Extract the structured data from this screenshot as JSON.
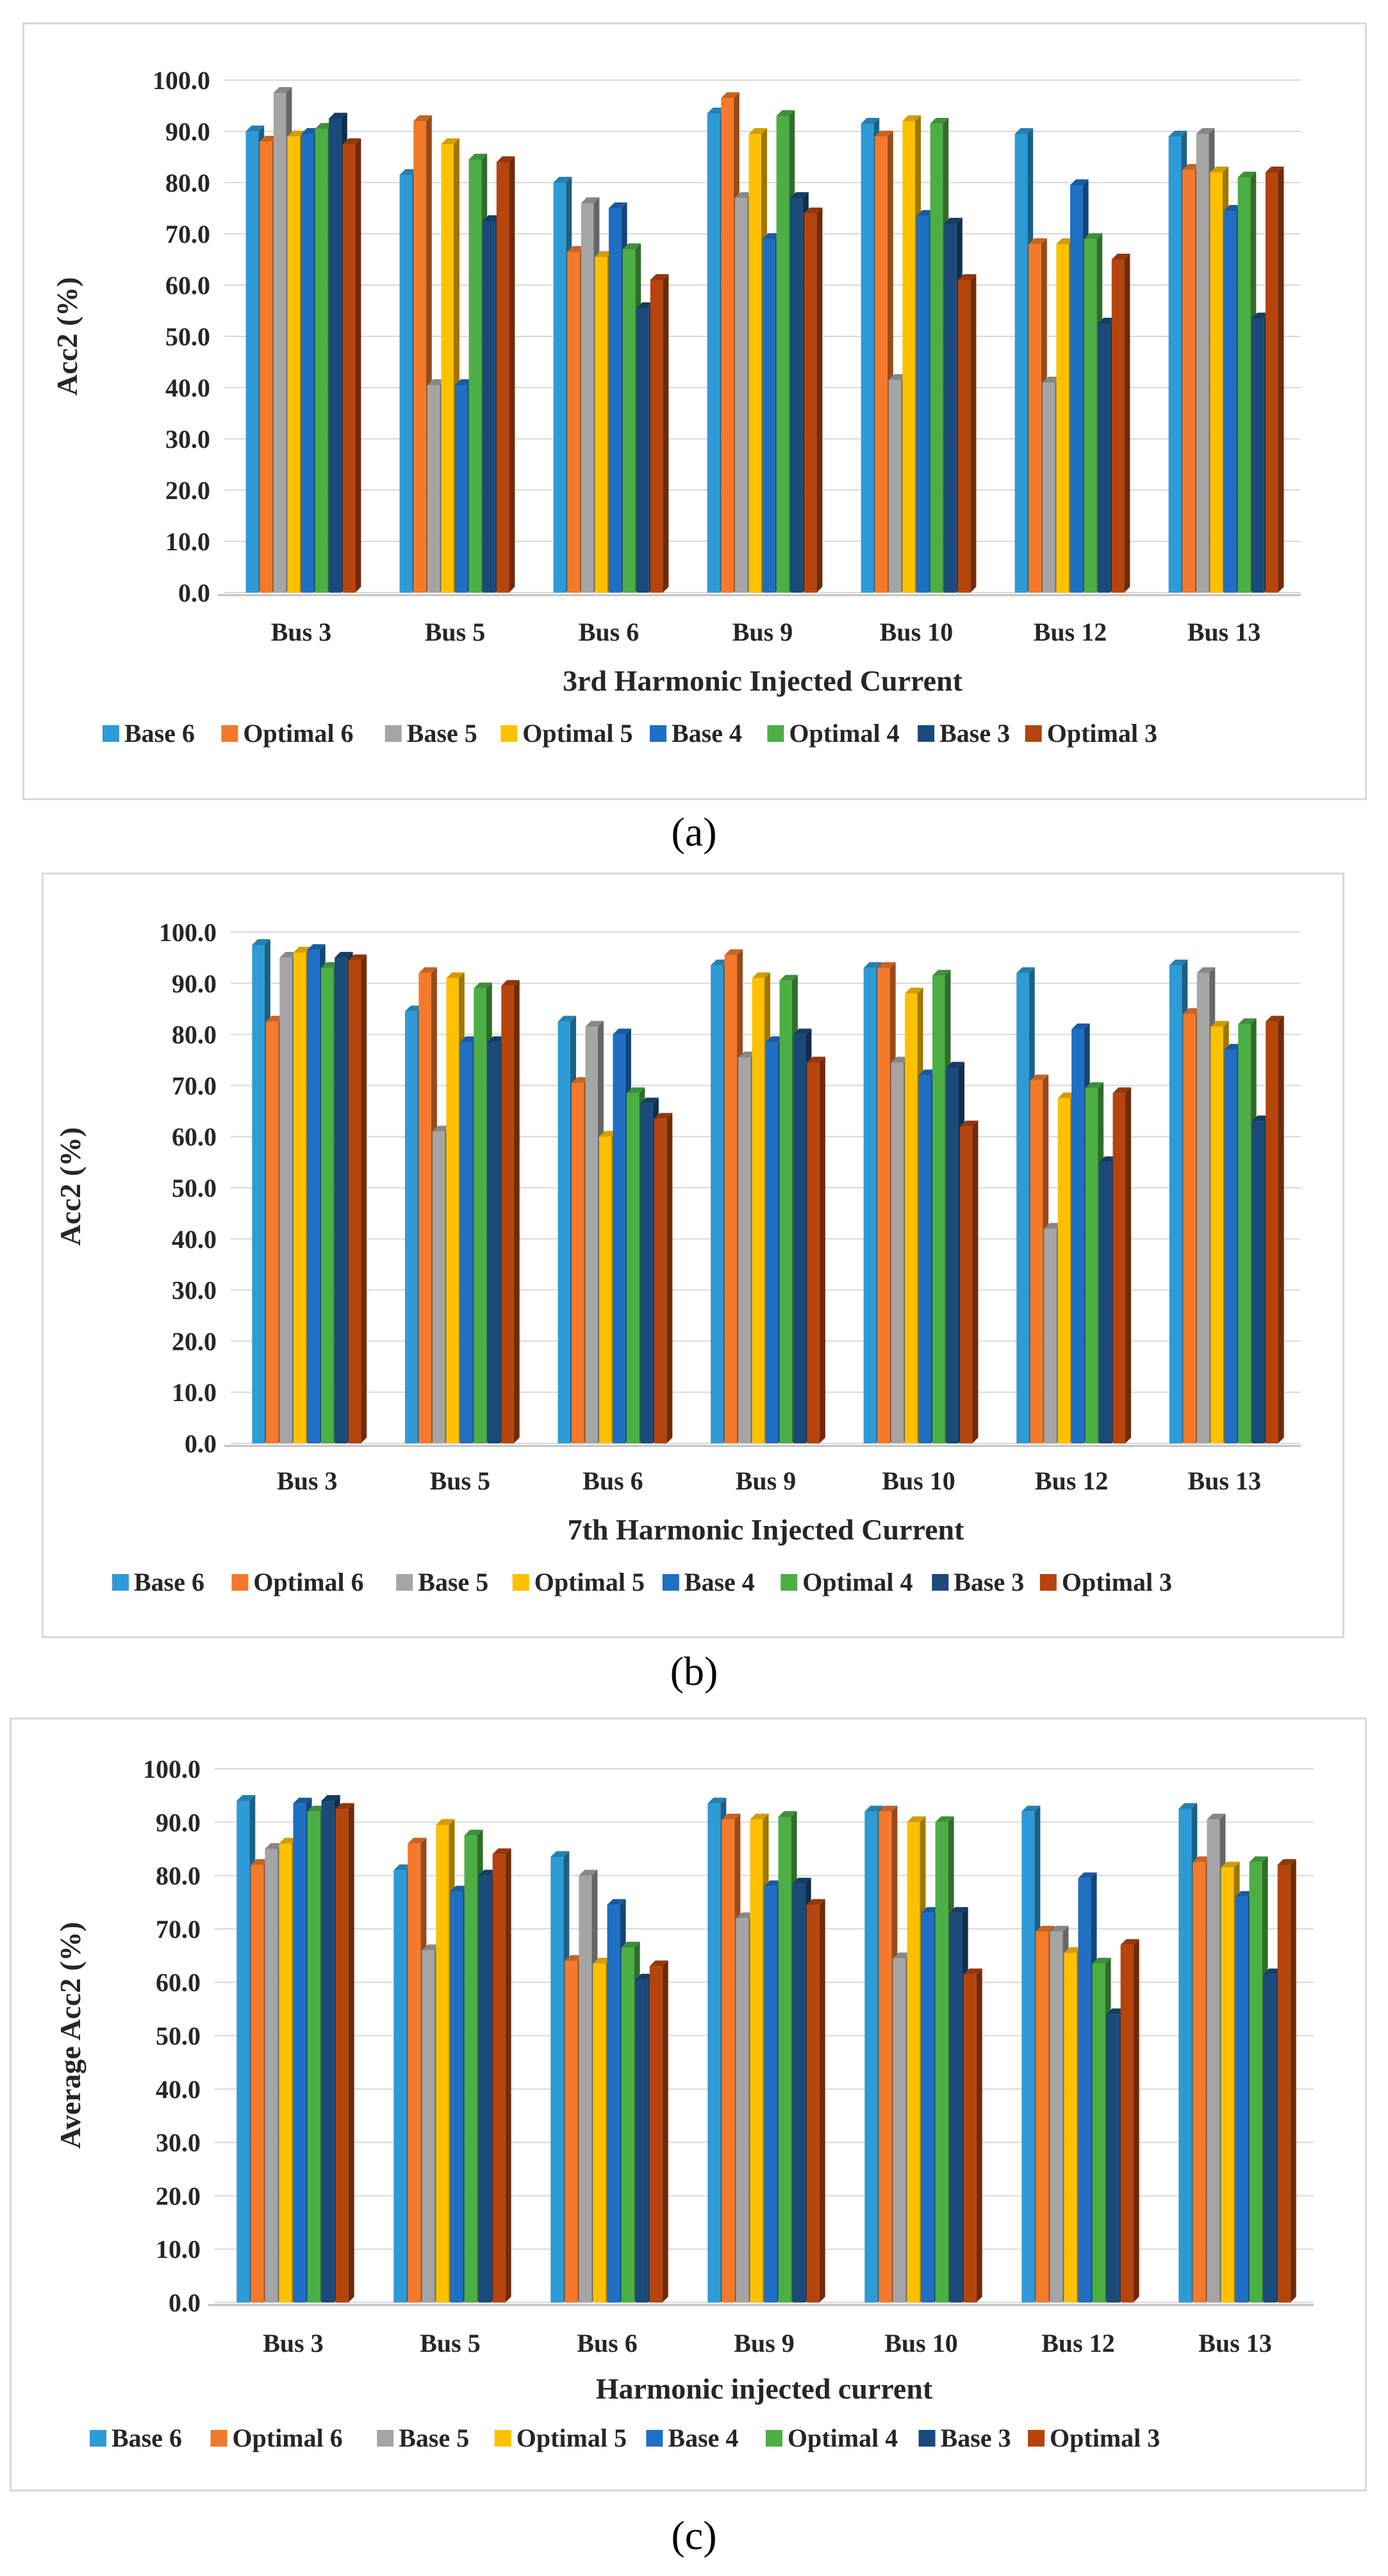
{
  "colors": {
    "Base 6": "#2E9BD6",
    "Optimal 6": "#F4792B",
    "Base 5": "#A5A5A5",
    "Optimal 5": "#FFC000",
    "Base 4": "#1F6FC5",
    "Optimal 4": "#4CAF45",
    "Base 3": "#1A4A7A",
    "Optimal 3": "#B5440D"
  },
  "chart_data": [
    {
      "panel": "(a)",
      "type": "bar",
      "title": "",
      "xlabel": "3rd Harmonic Injected Current",
      "ylabel": "Acc2 (%)",
      "ylim": [
        0,
        100
      ],
      "yticks": [
        "0.0",
        "10.0",
        "20.0",
        "30.0",
        "40.0",
        "50.0",
        "60.0",
        "70.0",
        "80.0",
        "90.0",
        "100.0"
      ],
      "categories": [
        "Bus 3",
        "Bus 5",
        "Bus 6",
        "Bus 9",
        "Bus 10",
        "Bus 12",
        "Bus 13"
      ],
      "legend": [
        "Base 6",
        "Optimal 6",
        "Base 5",
        "Optimal 5",
        "Base 4",
        "Optimal 4",
        "Base 3",
        "Optimal 3"
      ],
      "series": [
        {
          "name": "Base 6",
          "values": [
            90.0,
            81.5,
            80.0,
            93.5,
            91.5,
            89.5,
            89.0
          ]
        },
        {
          "name": "Optimal 6",
          "values": [
            88.0,
            92.0,
            66.5,
            96.5,
            89.0,
            68.0,
            82.5
          ]
        },
        {
          "name": "Base 5",
          "values": [
            97.5,
            40.5,
            76.0,
            77.0,
            41.5,
            41.0,
            89.5
          ]
        },
        {
          "name": "Optimal 5",
          "values": [
            89.0,
            87.5,
            65.5,
            89.5,
            92.0,
            68.0,
            82.0
          ]
        },
        {
          "name": "Base 4",
          "values": [
            89.5,
            40.5,
            75.0,
            69.0,
            73.5,
            79.5,
            74.5
          ]
        },
        {
          "name": "Optimal 4",
          "values": [
            90.5,
            84.5,
            67.0,
            93.0,
            91.5,
            69.0,
            81.0
          ]
        },
        {
          "name": "Base 3",
          "values": [
            92.5,
            72.5,
            55.5,
            77.0,
            72.0,
            52.5,
            53.5
          ]
        },
        {
          "name": "Optimal 3",
          "values": [
            87.5,
            84.0,
            61.0,
            74.0,
            61.0,
            65.0,
            82.0
          ]
        }
      ]
    },
    {
      "panel": "(b)",
      "type": "bar",
      "title": "",
      "xlabel": "7th Harmonic Injected Current",
      "ylabel": "Acc2 (%)",
      "ylim": [
        0,
        100
      ],
      "yticks": [
        "0.0",
        "10.0",
        "20.0",
        "30.0",
        "40.0",
        "50.0",
        "60.0",
        "70.0",
        "80.0",
        "90.0",
        "100.0"
      ],
      "categories": [
        "Bus 3",
        "Bus 5",
        "Bus 6",
        "Bus 9",
        "Bus 10",
        "Bus 12",
        "Bus 13"
      ],
      "legend": [
        "Base 6",
        "Optimal 6",
        "Base 5",
        "Optimal 5",
        "Base 4",
        "Optimal 4",
        "Base 3",
        "Optimal 3"
      ],
      "series": [
        {
          "name": "Base 6",
          "values": [
            97.5,
            84.5,
            82.5,
            93.5,
            93.0,
            92.0,
            93.5
          ]
        },
        {
          "name": "Optimal 6",
          "values": [
            82.5,
            92.0,
            70.5,
            95.5,
            93.0,
            71.0,
            84.0
          ]
        },
        {
          "name": "Base 5",
          "values": [
            95.0,
            61.0,
            81.5,
            75.5,
            74.5,
            42.0,
            92.0
          ]
        },
        {
          "name": "Optimal 5",
          "values": [
            96.0,
            91.0,
            60.0,
            91.0,
            88.0,
            67.5,
            81.5
          ]
        },
        {
          "name": "Base 4",
          "values": [
            96.5,
            78.5,
            80.0,
            78.5,
            72.0,
            81.0,
            77.0
          ]
        },
        {
          "name": "Optimal 4",
          "values": [
            93.0,
            89.0,
            68.5,
            90.5,
            91.5,
            69.5,
            82.0
          ]
        },
        {
          "name": "Base 3",
          "values": [
            95.0,
            78.5,
            66.5,
            80.0,
            73.5,
            55.0,
            63.0
          ]
        },
        {
          "name": "Optimal 3",
          "values": [
            94.5,
            89.5,
            63.5,
            74.5,
            62.0,
            68.5,
            82.5
          ]
        }
      ]
    },
    {
      "panel": "(c)",
      "type": "bar",
      "title": "",
      "xlabel": "Harmonic injected current",
      "ylabel": "Average Acc2 (%)",
      "ylim": [
        0,
        100
      ],
      "yticks": [
        "0.0",
        "10.0",
        "20.0",
        "30.0",
        "40.0",
        "50.0",
        "60.0",
        "70.0",
        "80.0",
        "90.0",
        "100.0"
      ],
      "categories": [
        "Bus 3",
        "Bus 5",
        "Bus 6",
        "Bus 9",
        "Bus 10",
        "Bus 12",
        "Bus 13"
      ],
      "legend": [
        "Base 6",
        "Optimal 6",
        "Base 5",
        "Optimal 5",
        "Base 4",
        "Optimal 4",
        "Base 3",
        "Optimal 3"
      ],
      "series": [
        {
          "name": "Base 6",
          "values": [
            94.0,
            81.0,
            83.5,
            93.5,
            92.0,
            92.0,
            92.5
          ]
        },
        {
          "name": "Optimal 6",
          "values": [
            82.0,
            86.0,
            64.0,
            90.5,
            92.0,
            69.5,
            82.5
          ]
        },
        {
          "name": "Base 5",
          "values": [
            85.0,
            66.0,
            80.0,
            72.0,
            64.5,
            69.5,
            90.5
          ]
        },
        {
          "name": "Optimal 5",
          "values": [
            86.0,
            89.5,
            63.5,
            90.5,
            90.0,
            65.5,
            81.5
          ]
        },
        {
          "name": "Base 4",
          "values": [
            93.5,
            77.0,
            74.5,
            78.0,
            73.0,
            79.5,
            76.0
          ]
        },
        {
          "name": "Optimal 4",
          "values": [
            92.0,
            87.5,
            66.5,
            91.0,
            90.0,
            63.5,
            82.5
          ]
        },
        {
          "name": "Base 3",
          "values": [
            94.0,
            80.0,
            60.5,
            78.5,
            73.0,
            54.0,
            61.5
          ]
        },
        {
          "name": "Optimal 3",
          "values": [
            92.5,
            84.0,
            63.0,
            74.5,
            61.5,
            67.0,
            82.0
          ]
        }
      ]
    }
  ]
}
